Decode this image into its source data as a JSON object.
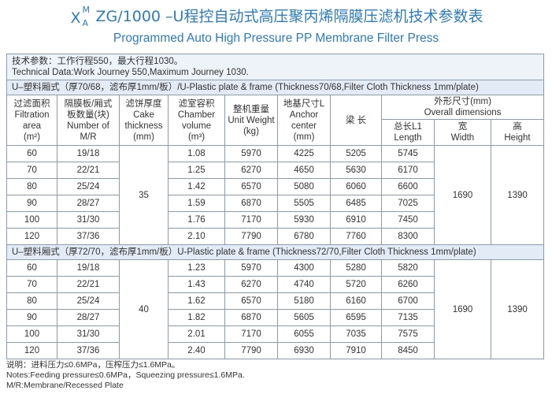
{
  "header": {
    "title_x": "X",
    "title_sup": "M",
    "title_sub": "A",
    "title": "ZG/1000 –U程控自动式高压聚丙烯隔膜压滤机技术参数表",
    "subtitle": "Programmed Auto High Pressure PP Membrane Filter Press"
  },
  "technical": [
    "技术参数：工作行程550，最大行程1030。",
    "Technical Data:Work Journey 550,Maximum Journey 1030."
  ],
  "columns": [
    [
      "过滤面积",
      "Filtration",
      "area",
      "(m²)"
    ],
    [
      "隔膜板/厢式",
      "板数量(块)",
      "Number of",
      "M/R"
    ],
    [
      "滤饼厚度",
      "Cake",
      "thickness",
      "(mm)"
    ],
    [
      "滤室容积",
      "Chamber",
      "volume",
      "(m³)"
    ],
    [
      "整机重量",
      "Unit Weight",
      "(kg)"
    ],
    [
      "地基尺寸L",
      "Anchor",
      "center",
      "(mm)"
    ],
    [
      "梁 长"
    ]
  ],
  "overall": [
    "外形尺寸(mm)",
    "Overall  dimensions"
  ],
  "sub_columns": [
    [
      "总长L1",
      "Length"
    ],
    [
      "宽",
      "Width"
    ],
    [
      "高",
      "Height"
    ]
  ],
  "sections": [
    {
      "title": "U–塑料厢式（厚70/68，滤布厚1mm/板）/U-Plastic plate & frame (Thickness70/68,Filter Cloth Thickness 1mm/plate)",
      "cake": "35",
      "width": "1690",
      "height": "1390",
      "rows": [
        [
          "60",
          "19/18",
          "1.08",
          "5970",
          "4225",
          "5205",
          "5745"
        ],
        [
          "70",
          "22/21",
          "1.25",
          "6270",
          "4650",
          "5630",
          "6170"
        ],
        [
          "80",
          "25/24",
          "1.42",
          "6570",
          "5080",
          "6060",
          "6600"
        ],
        [
          "90",
          "28/27",
          "1.59",
          "6870",
          "5505",
          "6485",
          "7025"
        ],
        [
          "100",
          "31/30",
          "1.76",
          "7170",
          "5930",
          "6910",
          "7450"
        ],
        [
          "120",
          "37/36",
          "2.10",
          "7790",
          "6780",
          "7760",
          "8300"
        ]
      ]
    },
    {
      "title": "U–塑料厢式（厚72/70，滤布厚1mm/板）U-Plastic plate & frame (Thickness72/70,Filter Cloth Thickness 1mm/plate)",
      "cake": "40",
      "width": "1690",
      "height": "1390",
      "rows": [
        [
          "60",
          "19/18",
          "1.23",
          "5970",
          "4300",
          "5280",
          "5820"
        ],
        [
          "70",
          "22/21",
          "1.43",
          "6270",
          "4740",
          "5720",
          "6260"
        ],
        [
          "80",
          "25/24",
          "1.62",
          "6570",
          "5180",
          "6160",
          "6700"
        ],
        [
          "90",
          "28/27",
          "1.82",
          "6870",
          "5605",
          "6595",
          "7135"
        ],
        [
          "100",
          "31/30",
          "2.01",
          "7170",
          "6055",
          "7035",
          "7575"
        ],
        [
          "120",
          "37/36",
          "2.40",
          "7790",
          "6930",
          "7910",
          "8450"
        ]
      ]
    }
  ],
  "notes": [
    "说明：进料压力≤0.6MPa，压榨压力≤1.6MPa。",
    "Notes:Feeding pressure≤0.6MPa，Squeezing pressure≤1.6MPa.",
    "M/R:Membrane/Recessed Plate"
  ]
}
